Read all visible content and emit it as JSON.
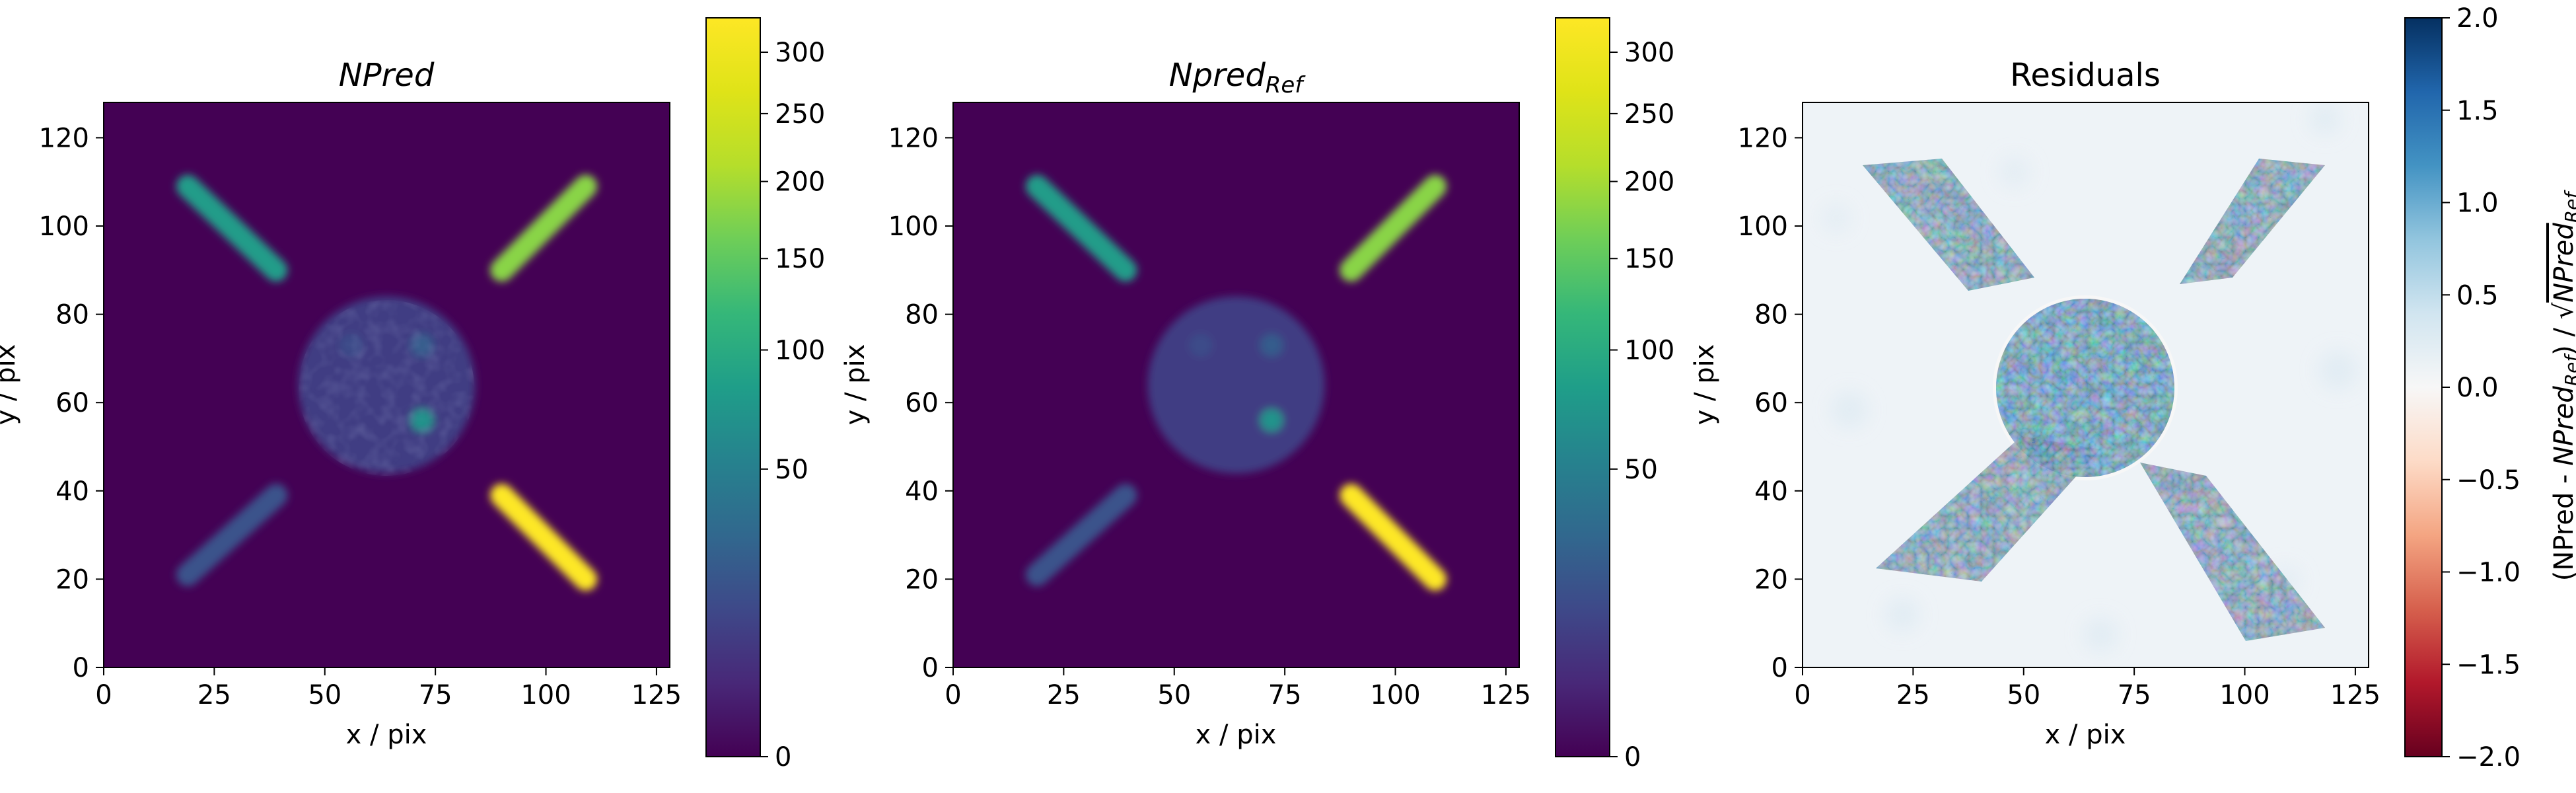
{
  "chart_data": [
    {
      "type": "heatmap",
      "title": "NPred",
      "title_style": "italic",
      "xlabel": "x / pix",
      "ylabel": "y / pix",
      "xlim": [
        0,
        128
      ],
      "ylim": [
        0,
        128
      ],
      "xticks": [
        0,
        25,
        50,
        75,
        100,
        125
      ],
      "yticks": [
        0,
        20,
        40,
        60,
        80,
        100,
        120
      ],
      "colormap": "viridis",
      "colorbar": {
        "scale": "sqrt",
        "range": [
          0,
          330
        ],
        "ticks": [
          0,
          50,
          100,
          150,
          200,
          250,
          300
        ],
        "label": ""
      },
      "features": [
        {
          "shape": "bar",
          "from": [
            19,
            109
          ],
          "to": [
            39,
            90
          ],
          "peak": 80
        },
        {
          "shape": "bar",
          "from": [
            90,
            90
          ],
          "to": [
            109,
            109
          ],
          "peak": 180
        },
        {
          "shape": "bar",
          "from": [
            19,
            21
          ],
          "to": [
            39,
            39
          ],
          "peak": 18
        },
        {
          "shape": "bar",
          "from": [
            90,
            39
          ],
          "to": [
            109,
            20
          ],
          "peak": 330
        },
        {
          "shape": "disk",
          "center": [
            64,
            64
          ],
          "radius": 20,
          "peak": 9
        },
        {
          "shape": "spot",
          "center": [
            72,
            56
          ],
          "peak": 70
        },
        {
          "shape": "spot",
          "center": [
            72,
            73
          ],
          "peak": 22
        },
        {
          "shape": "spot",
          "center": [
            56,
            73
          ],
          "peak": 14
        }
      ]
    },
    {
      "type": "heatmap",
      "title": "Npred",
      "title_subscript": "Ref",
      "title_style": "italic",
      "xlabel": "x / pix",
      "ylabel": "y / pix",
      "xlim": [
        0,
        128
      ],
      "ylim": [
        0,
        128
      ],
      "xticks": [
        0,
        25,
        50,
        75,
        100,
        125
      ],
      "yticks": [
        0,
        20,
        40,
        60,
        80,
        100,
        120
      ],
      "colormap": "viridis",
      "colorbar": {
        "scale": "sqrt",
        "range": [
          0,
          330
        ],
        "ticks": [
          0,
          50,
          100,
          150,
          200,
          250,
          300
        ],
        "label": ""
      },
      "features": [
        {
          "shape": "bar",
          "from": [
            19,
            109
          ],
          "to": [
            39,
            90
          ],
          "peak": 80
        },
        {
          "shape": "bar",
          "from": [
            90,
            90
          ],
          "to": [
            109,
            109
          ],
          "peak": 180
        },
        {
          "shape": "bar",
          "from": [
            19,
            21
          ],
          "to": [
            39,
            39
          ],
          "peak": 18
        },
        {
          "shape": "bar",
          "from": [
            90,
            39
          ],
          "to": [
            109,
            20
          ],
          "peak": 330
        },
        {
          "shape": "disk",
          "center": [
            64,
            64
          ],
          "radius": 20,
          "peak": 9
        },
        {
          "shape": "spot",
          "center": [
            72,
            56
          ],
          "peak": 70
        },
        {
          "shape": "spot",
          "center": [
            72,
            73
          ],
          "peak": 22
        },
        {
          "shape": "spot",
          "center": [
            56,
            73
          ],
          "peak": 14
        }
      ]
    },
    {
      "type": "heatmap",
      "title": "Residuals",
      "xlabel": "x / pix",
      "ylabel": "y / pix",
      "xlim": [
        0,
        128
      ],
      "ylim": [
        0,
        128
      ],
      "xticks": [
        0,
        25,
        50,
        75,
        100,
        125
      ],
      "yticks": [
        0,
        20,
        40,
        60,
        80,
        100,
        120
      ],
      "colormap": "RdBu",
      "colorbar": {
        "scale": "linear",
        "range": [
          -2.0,
          2.0
        ],
        "ticks": [
          -2.0,
          -1.5,
          -1.0,
          -0.5,
          0.0,
          0.5,
          1.0,
          1.5,
          2.0
        ],
        "tick_labels": [
          "−2.0",
          "−1.5",
          "−1.0",
          "−0.5",
          "0.0",
          "0.5",
          "1.0",
          "1.5",
          "2.0"
        ],
        "label_parts": [
          "(NPred - ",
          "NPred",
          "Ref",
          ") / √",
          "NPred",
          "Ref"
        ]
      }
    }
  ]
}
